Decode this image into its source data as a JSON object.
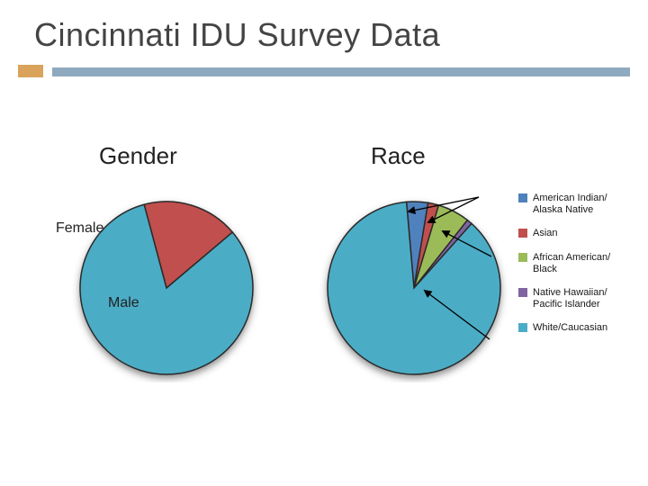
{
  "title": "Cincinnati IDU Survey Data",
  "rule": {
    "block_color": "#d9a35c",
    "bar_color": "#8faabf"
  },
  "subtitles": {
    "gender": "Gender",
    "race": "Race"
  },
  "pie_style": {
    "stroke": "#2b2b2b",
    "stroke_width": 1.5,
    "shadow_color": "#3a3a3a",
    "shadow_blur": 4,
    "shadow_dy": 4,
    "radius": 96,
    "title_fontsize": 26,
    "slice_label_fontsize": 16,
    "legend_fontsize": 11
  },
  "gender_chart": {
    "type": "pie",
    "start_angle_deg": -15,
    "slices": [
      {
        "key": "female",
        "label": "Female",
        "value": 18,
        "color": "#c0504d"
      },
      {
        "key": "male",
        "label": "Male",
        "value": 82,
        "color": "#4bacc6"
      }
    ],
    "slice_labels": {
      "female": "Female",
      "male": "Male"
    }
  },
  "race_chart": {
    "type": "pie",
    "start_angle_deg": -5,
    "slices": [
      {
        "key": "ai_an",
        "value": 4,
        "color": "#4f81bd"
      },
      {
        "key": "asian",
        "value": 2,
        "color": "#c0504d"
      },
      {
        "key": "black",
        "value": 6,
        "color": "#9bbb59"
      },
      {
        "key": "nh_pi",
        "value": 1,
        "color": "#8064a2"
      },
      {
        "key": "white",
        "value": 87,
        "color": "#4bacc6"
      }
    ],
    "legend": [
      {
        "color": "#4f81bd",
        "label": "American Indian/\nAlaska Native"
      },
      {
        "color": "#c0504d",
        "label": "Asian"
      },
      {
        "color": "#9bbb59",
        "label": "African American/\nBlack"
      },
      {
        "color": "#8064a2",
        "label": "Native Hawaiian/\nPacific Islander"
      },
      {
        "color": "#4bacc6",
        "label": "White/Caucasian"
      }
    ],
    "callout_arrows": [
      {
        "from": [
          182,
          4
        ],
        "to": [
          126,
          32
        ]
      },
      {
        "from": [
          182,
          4
        ],
        "to": [
          104,
          20
        ]
      },
      {
        "from": [
          196,
          70
        ],
        "to": [
          142,
          42
        ]
      },
      {
        "from": [
          194,
          162
        ],
        "to": [
          122,
          108
        ]
      }
    ]
  },
  "background_color": "#ffffff"
}
